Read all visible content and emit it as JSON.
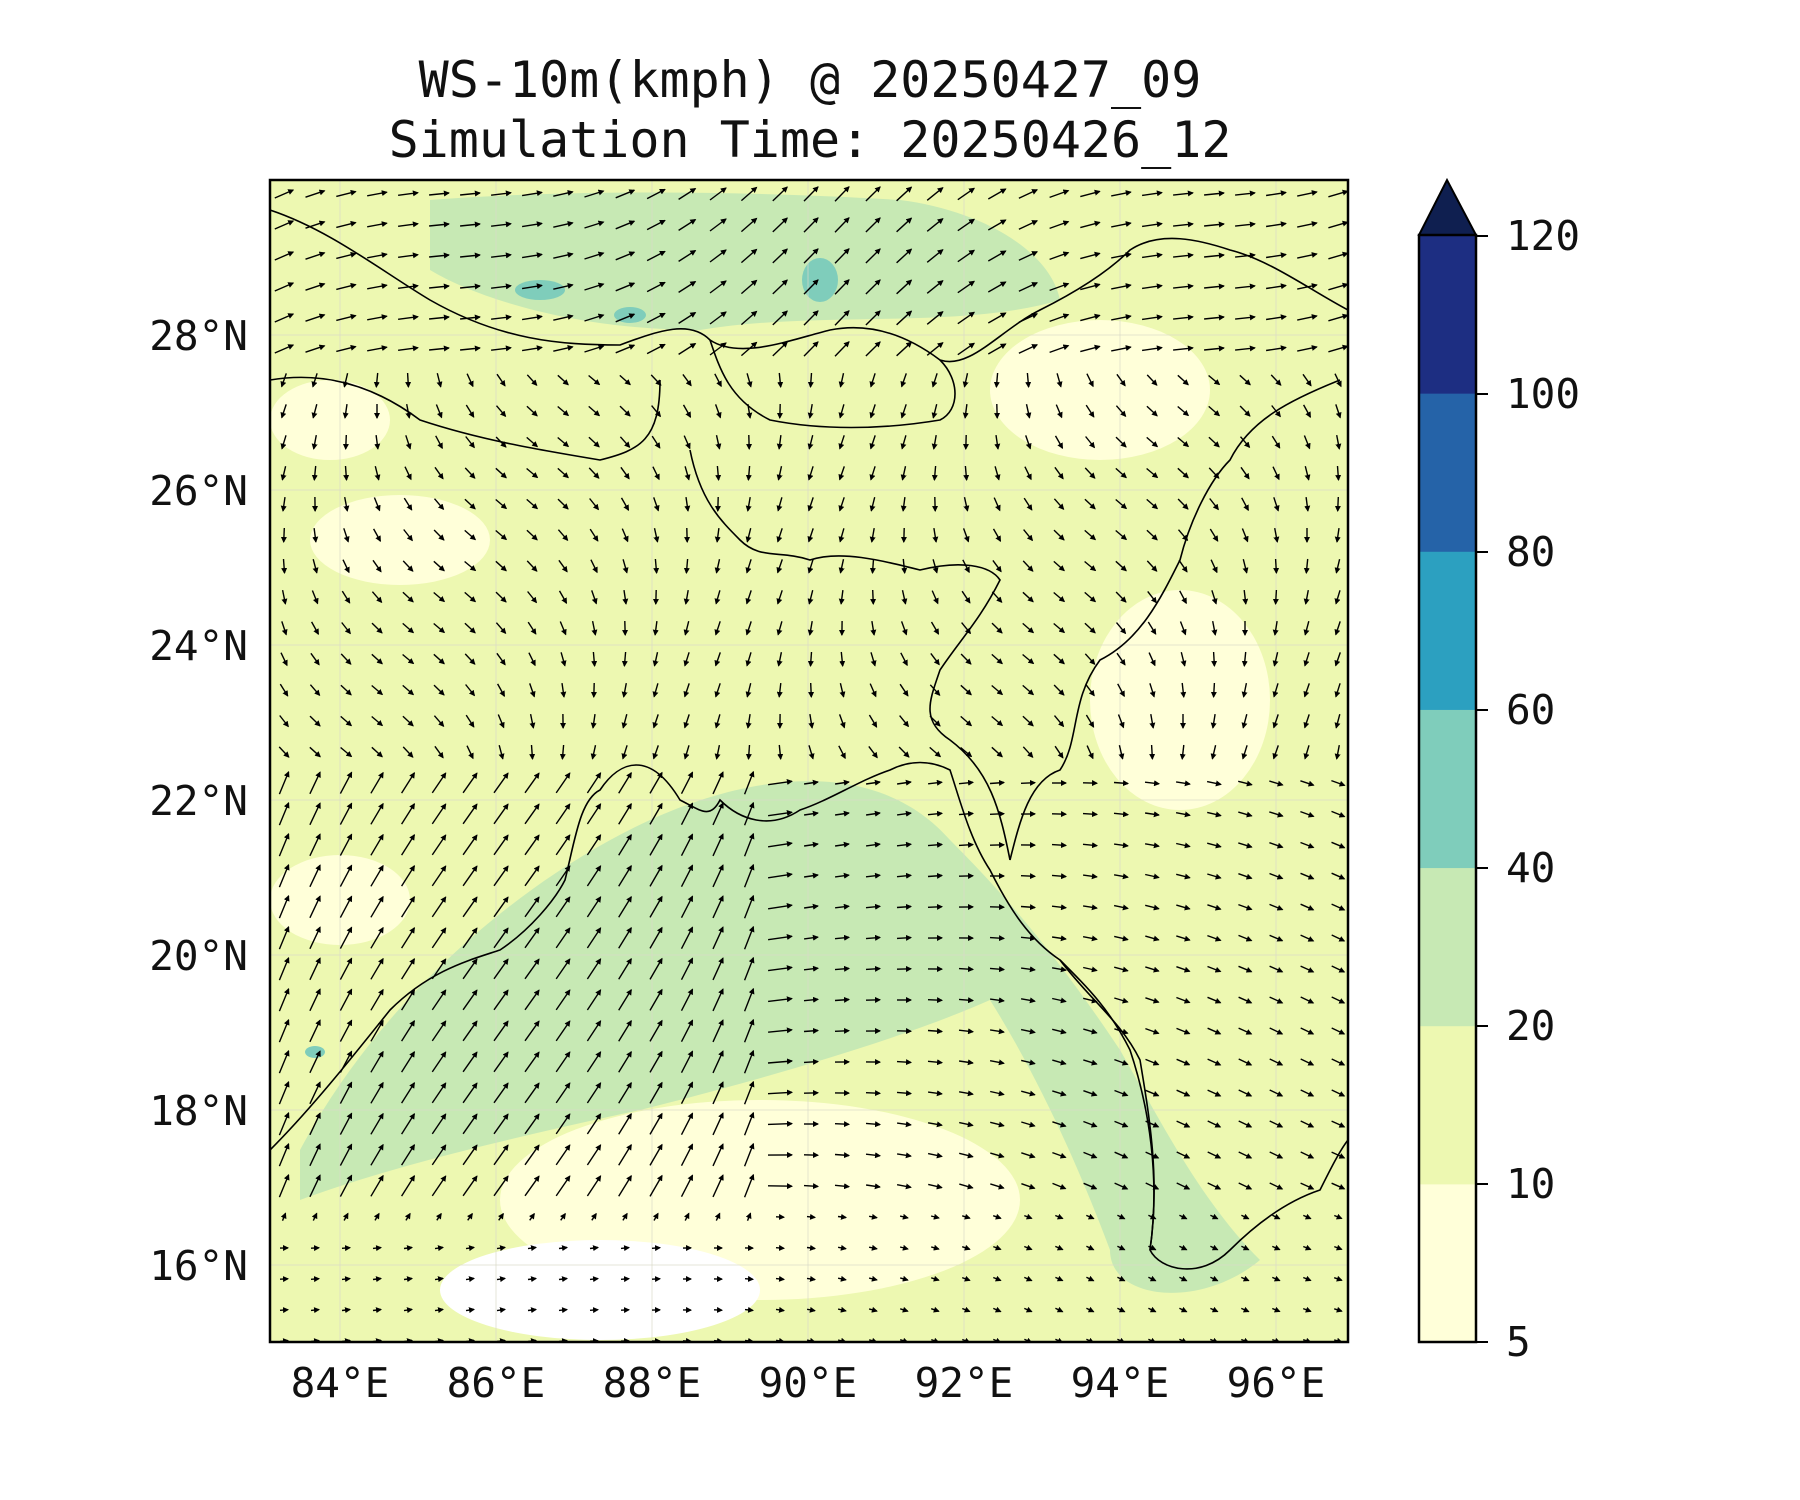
{
  "title": {
    "line1": "WS-10m(kmph) @ 20250427_09",
    "line2": "Simulation Time: 20250426_12"
  },
  "map": {
    "projection": "PlateCarree",
    "lon_range": [
      83,
      97
    ],
    "lat_range": [
      15,
      30
    ],
    "lon_ticks": [
      {
        "value": 84,
        "label": "84°E"
      },
      {
        "value": 86,
        "label": "86°E"
      },
      {
        "value": 88,
        "label": "88°E"
      },
      {
        "value": 90,
        "label": "90°E"
      },
      {
        "value": 92,
        "label": "92°E"
      },
      {
        "value": 94,
        "label": "94°E"
      },
      {
        "value": 96,
        "label": "96°E"
      }
    ],
    "lat_ticks": [
      {
        "value": 16,
        "label": "16°N"
      },
      {
        "value": 18,
        "label": "18°N"
      },
      {
        "value": 20,
        "label": "20°N"
      },
      {
        "value": 22,
        "label": "22°N"
      },
      {
        "value": 24,
        "label": "24°N"
      },
      {
        "value": 26,
        "label": "26°N"
      },
      {
        "value": 28,
        "label": "28°N"
      }
    ],
    "gridlines": true,
    "field": "wind speed at 10 m (kmph)",
    "vectors": "wind direction arrows (quiver)"
  },
  "colorbar": {
    "levels": [
      {
        "low": 5,
        "high": 10,
        "color": "#ffffd9"
      },
      {
        "low": 10,
        "high": 20,
        "color": "#edf8b1"
      },
      {
        "low": 20,
        "high": 40,
        "color": "#c7e9b4"
      },
      {
        "low": 40,
        "high": 60,
        "color": "#7fcdbb"
      },
      {
        "low": 60,
        "high": 80,
        "color": "#2ca0c0"
      },
      {
        "low": 80,
        "high": 100,
        "color": "#2563a8"
      },
      {
        "low": 100,
        "high": 120,
        "color": "#1d2e82"
      }
    ],
    "extend_color": "#0f1f50",
    "extend": "max",
    "tick_labels": [
      "5",
      "10",
      "20",
      "40",
      "60",
      "80",
      "100",
      "120"
    ]
  }
}
